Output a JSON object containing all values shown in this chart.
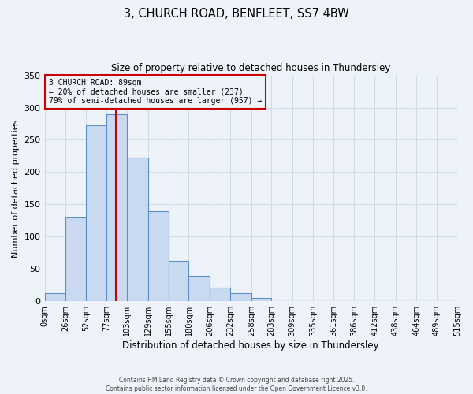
{
  "title_line1": "3, CHURCH ROAD, BENFLEET, SS7 4BW",
  "title_line2": "Size of property relative to detached houses in Thundersley",
  "xlabel": "Distribution of detached houses by size in Thundersley",
  "ylabel": "Number of detached properties",
  "bar_edges": [
    0,
    26,
    52,
    77,
    103,
    129,
    155,
    180,
    206,
    232,
    258,
    283,
    309,
    335,
    361,
    386,
    412,
    438,
    464,
    489,
    515
  ],
  "bar_heights": [
    12,
    130,
    272,
    290,
    222,
    139,
    63,
    39,
    21,
    12,
    5,
    0,
    0,
    0,
    0,
    0,
    0,
    0,
    0,
    0
  ],
  "bar_facecolor": "#c9d9f0",
  "bar_edgecolor": "#5b8fcc",
  "vline_x": 89,
  "vline_color": "#cc0000",
  "annotation_text_line1": "3 CHURCH ROAD: 89sqm",
  "annotation_text_line2": "← 20% of detached houses are smaller (237)",
  "annotation_text_line3": "79% of semi-detached houses are larger (957) →",
  "box_edgecolor": "#cc0000",
  "ylim": [
    0,
    350
  ],
  "yticks": [
    0,
    50,
    100,
    150,
    200,
    250,
    300,
    350
  ],
  "xtick_labels": [
    "0sqm",
    "26sqm",
    "52sqm",
    "77sqm",
    "103sqm",
    "129sqm",
    "155sqm",
    "180sqm",
    "206sqm",
    "232sqm",
    "258sqm",
    "283sqm",
    "309sqm",
    "335sqm",
    "361sqm",
    "386sqm",
    "412sqm",
    "438sqm",
    "464sqm",
    "489sqm",
    "515sqm"
  ],
  "grid_color": "#d0dce8",
  "bg_color": "#eef2f9",
  "footer_line1": "Contains HM Land Registry data © Crown copyright and database right 2025.",
  "footer_line2": "Contains public sector information licensed under the Open Government Licence v3.0."
}
